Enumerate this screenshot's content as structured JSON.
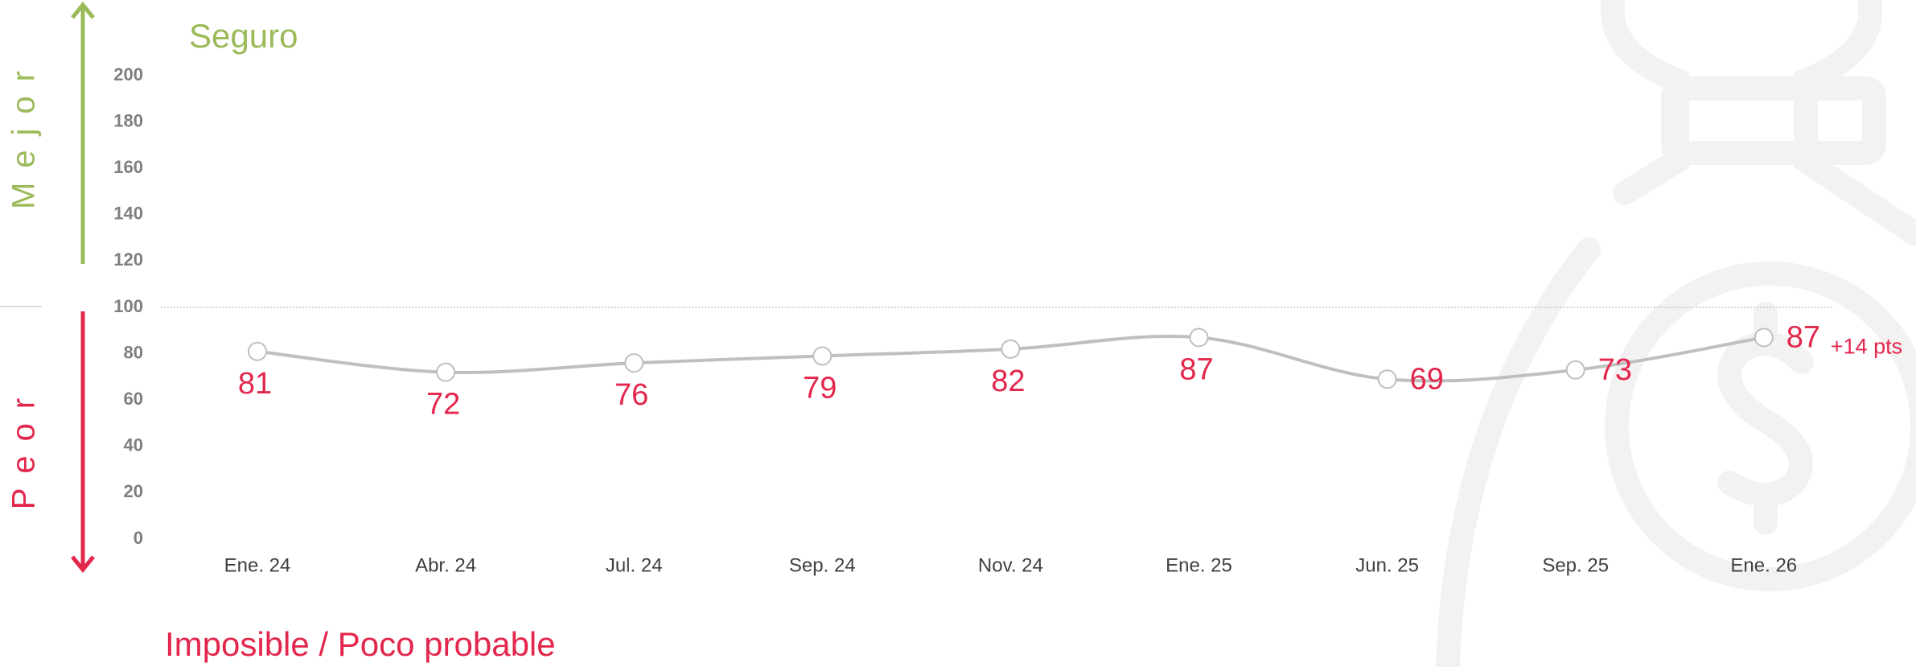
{
  "chart_data": {
    "type": "line",
    "title": "Seguro",
    "categories": [
      "Ene. 24",
      "Abr. 24",
      "Jul. 24",
      "Sep. 24",
      "Nov. 24",
      "Ene. 25",
      "Jun. 25",
      "Sep. 25",
      "Ene. 26"
    ],
    "values": [
      81,
      72,
      76,
      79,
      82,
      87,
      69,
      73,
      87
    ],
    "color": "#bfbfbf",
    "label_color": "#e3264c",
    "ylim": [
      0,
      200
    ],
    "yticks": [
      0,
      20,
      40,
      60,
      80,
      100,
      120,
      140,
      160,
      180,
      200
    ],
    "reference_line": 100,
    "change_annotation": "+14 pts",
    "upper_axis_label": "Mejor",
    "lower_axis_label": "Peor",
    "bottom_label": "Imposible / Poco probable"
  }
}
